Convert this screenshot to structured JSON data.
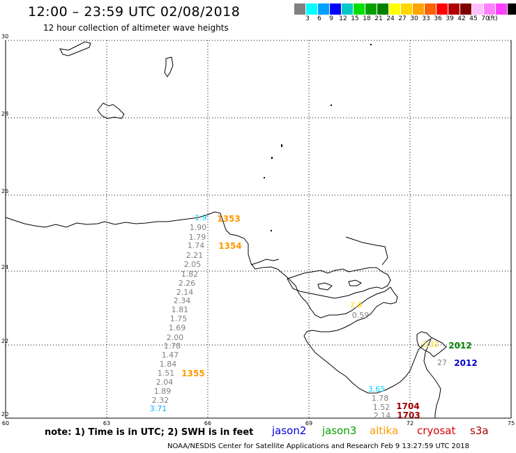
{
  "header": {
    "title": "12:00 – 23:59 UTC 02/08/2018",
    "subtitle": "12 hour collection of altimeter wave heights"
  },
  "legend": {
    "colors": [
      "#808080",
      "#00ffff",
      "#00a0ff",
      "#0000ff",
      "#00c8c8",
      "#00e000",
      "#00a000",
      "#008000",
      "#ffff00",
      "#ffd700",
      "#ffa500",
      "#ff6000",
      "#ff0000",
      "#b00000",
      "#800000",
      "#ffc0ff",
      "#ff80ff",
      "#ff40ff",
      "#000000"
    ],
    "labels": [
      "3",
      "6",
      "9",
      "12",
      "15",
      "18",
      "21",
      "24",
      "27",
      "30",
      "33",
      "36",
      "39",
      "42",
      "45",
      "70",
      "(ft)"
    ]
  },
  "axes": {
    "lat_ticks": [
      "30",
      "28",
      "26",
      "24",
      "22",
      "20"
    ],
    "lon_ticks": [
      "60",
      "63",
      "66",
      "69",
      "72",
      "75"
    ]
  },
  "wave_heights": [
    {
      "v": "1.9",
      "c": "#00d0ff"
    },
    {
      "v": "1.90",
      "c": "#808080"
    },
    {
      "v": "1.79",
      "c": "#808080"
    },
    {
      "v": "1.74",
      "c": "#808080"
    },
    {
      "v": "2.21",
      "c": "#808080"
    },
    {
      "v": "2.05",
      "c": "#808080"
    },
    {
      "v": "1.82",
      "c": "#808080"
    },
    {
      "v": "2.26",
      "c": "#808080"
    },
    {
      "v": "2.14",
      "c": "#808080"
    },
    {
      "v": "2.34",
      "c": "#808080"
    },
    {
      "v": "1.81",
      "c": "#808080"
    },
    {
      "v": "1.75",
      "c": "#808080"
    },
    {
      "v": "1.69",
      "c": "#808080"
    },
    {
      "v": "2.00",
      "c": "#808080"
    },
    {
      "v": "1.78",
      "c": "#808080"
    },
    {
      "v": "1.47",
      "c": "#808080"
    },
    {
      "v": "1.84",
      "c": "#808080"
    },
    {
      "v": "1.51",
      "c": "#808080"
    },
    {
      "v": "2.04",
      "c": "#808080"
    },
    {
      "v": "1.89",
      "c": "#808080"
    },
    {
      "v": "2.32",
      "c": "#808080"
    },
    {
      "v": "3.71",
      "c": "#00b0ff"
    },
    {
      "v": "2.6",
      "c": "#ffd700"
    },
    {
      "v": "0.59",
      "c": "#808080"
    },
    {
      "v": "2.32",
      "c": "#ffd700"
    },
    {
      "v": "27",
      "c": "#808080"
    },
    {
      "v": "3.65",
      "c": "#00d0ff"
    },
    {
      "v": "1.78",
      "c": "#808080"
    },
    {
      "v": "1.52",
      "c": "#808080"
    },
    {
      "v": "2.14",
      "c": "#808080"
    }
  ],
  "times": [
    {
      "t": "1353",
      "c": "#ff9900"
    },
    {
      "t": "1354",
      "c": "#ff9900"
    },
    {
      "t": "1355",
      "c": "#ff9900"
    },
    {
      "t": "2012",
      "c": "#008000"
    },
    {
      "t": "2012",
      "c": "#0000cc"
    },
    {
      "t": "1704",
      "c": "#a00000"
    },
    {
      "t": "1703",
      "c": "#a00000"
    }
  ],
  "footer": {
    "note": "note:  1) Time is in UTC; 2) SWH is in feet",
    "satellites": [
      {
        "name": "jason2",
        "color": "#0000dd"
      },
      {
        "name": "jason3",
        "color": "#00a000"
      },
      {
        "name": "altika",
        "color": "#ff9900"
      },
      {
        "name": "cryosat",
        "color": "#dd0000"
      },
      {
        "name": "s3a",
        "color": "#aa0000"
      }
    ],
    "credit": "NOAA/NESDIS Center for Satellite Applications and Research    Feb  9 13:27:59 UTC 2018"
  }
}
